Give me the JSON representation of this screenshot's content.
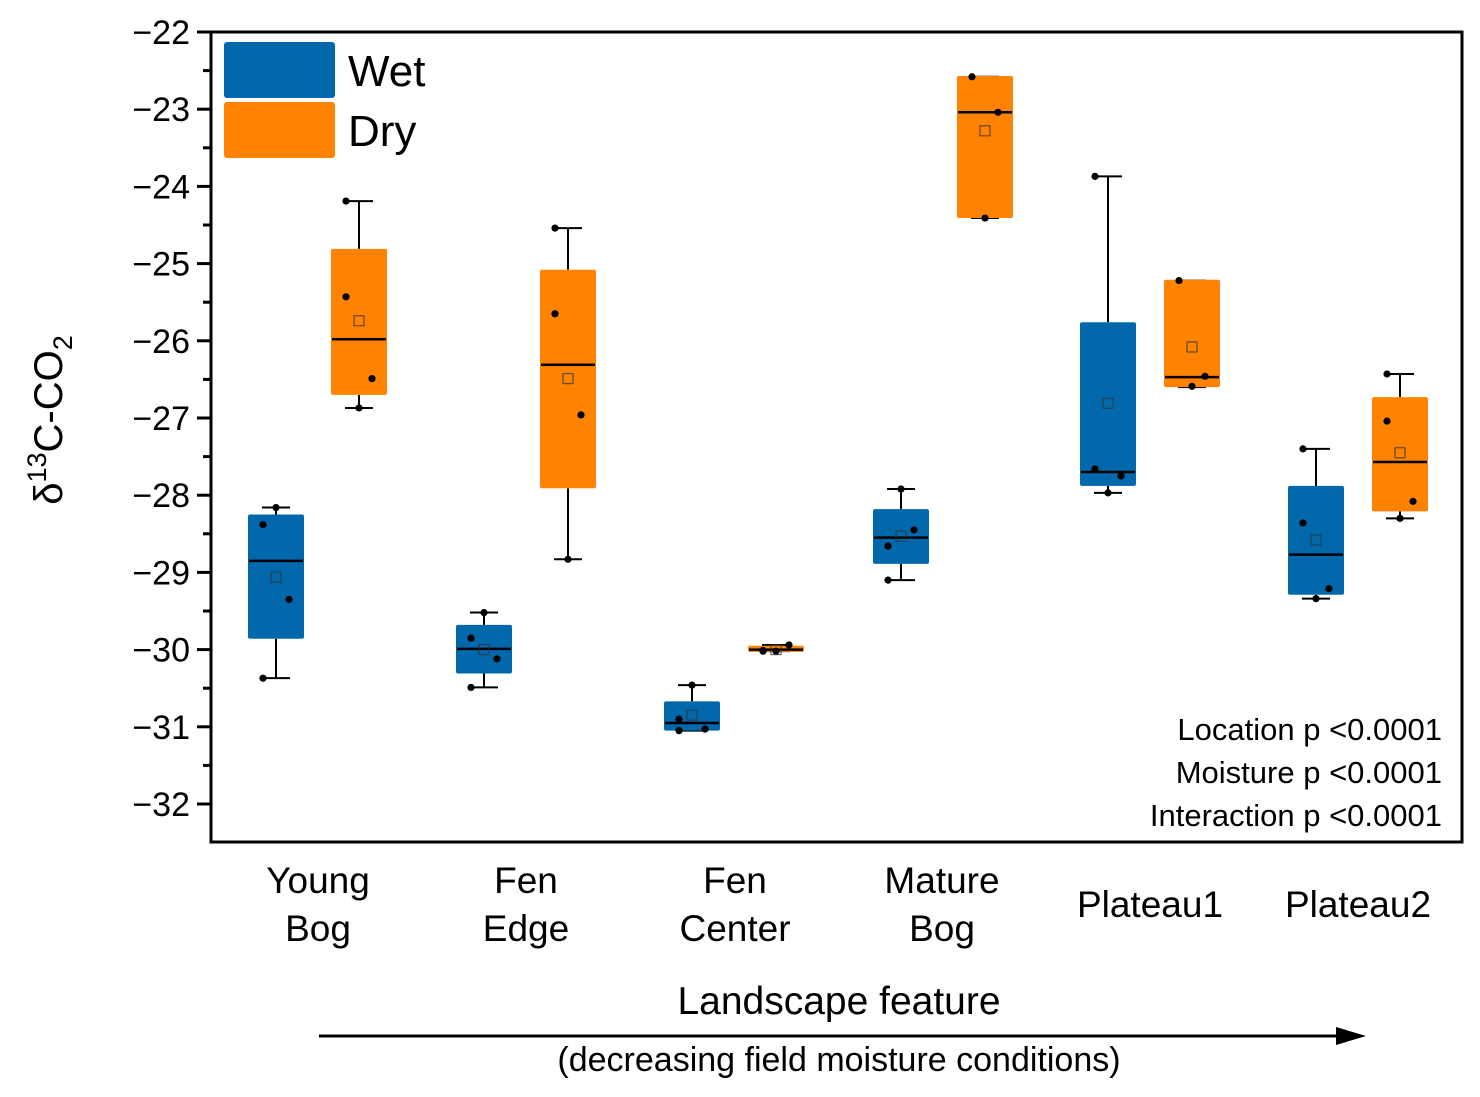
{
  "chart_data": {
    "type": "box",
    "title": "",
    "ylabel": "δ13C-CO2",
    "ylabel_parts": {
      "delta": "δ",
      "sup": "13",
      "main": "C-CO",
      "sub": "2"
    },
    "xlabel": "Landscape feature",
    "xlabel_subtitle": "(decreasing field moisture conditions)",
    "ylim": [
      -32.5,
      -22
    ],
    "yticks": [
      -22,
      -23,
      -24,
      -25,
      -26,
      -27,
      -28,
      -29,
      -30,
      -31,
      -32
    ],
    "ytick_labels": [
      "−22",
      "−23",
      "−24",
      "−25",
      "−26",
      "−27",
      "−28",
      "−29",
      "−30",
      "−31",
      "−32"
    ],
    "grid": false,
    "legend_position": "top-left",
    "categories": [
      {
        "lines": [
          "Young",
          "Bog"
        ]
      },
      {
        "lines": [
          "Fen",
          "Edge"
        ]
      },
      {
        "lines": [
          "Fen",
          "Center"
        ]
      },
      {
        "lines": [
          "Mature",
          "Bog"
        ]
      },
      {
        "lines": [
          "Plateau1"
        ]
      },
      {
        "lines": [
          "Plateau2"
        ]
      }
    ],
    "series": [
      {
        "name": "Wet",
        "color": "#0268ac",
        "boxes": [
          {
            "q1": -29.86,
            "q3": -28.25,
            "median": -28.85,
            "mean": -29.06,
            "whisker_low": -30.37,
            "whisker_high": -28.16,
            "points": [
              -28.38,
              -29.35,
              -28.16,
              -30.37
            ]
          },
          {
            "q1": -30.31,
            "q3": -29.68,
            "median": -29.99,
            "mean": -30.0,
            "whisker_low": -30.49,
            "whisker_high": -29.52,
            "points": [
              -29.85,
              -30.12,
              -29.52,
              -30.49
            ]
          },
          {
            "q1": -31.05,
            "q3": -30.67,
            "median": -30.95,
            "mean": -30.85,
            "whisker_low": -31.05,
            "whisker_high": -30.46,
            "points": [
              -30.9,
              -31.03,
              -30.46,
              -31.05
            ]
          },
          {
            "q1": -28.89,
            "q3": -28.18,
            "median": -28.55,
            "mean": -28.53,
            "whisker_low": -29.1,
            "whisker_high": -27.92,
            "points": [
              -28.66,
              -28.45,
              -27.92,
              -29.1
            ]
          },
          {
            "q1": -27.88,
            "q3": -25.76,
            "median": -27.7,
            "mean": -26.81,
            "whisker_low": -27.97,
            "whisker_high": -23.87,
            "points": [
              -27.66,
              -27.75,
              -27.97,
              -23.87
            ]
          },
          {
            "q1": -29.29,
            "q3": -27.88,
            "median": -28.77,
            "mean": -28.58,
            "whisker_low": -29.34,
            "whisker_high": -27.4,
            "points": [
              -28.36,
              -29.21,
              -29.34,
              -27.4
            ]
          }
        ]
      },
      {
        "name": "Dry",
        "color": "#ff8300",
        "boxes": [
          {
            "q1": -26.7,
            "q3": -24.81,
            "median": -25.98,
            "mean": -25.74,
            "whisker_low": -26.87,
            "whisker_high": -24.19,
            "points": [
              -25.43,
              -26.49,
              -26.87,
              -24.19
            ]
          },
          {
            "q1": -27.91,
            "q3": -25.08,
            "median": -26.31,
            "mean": -26.49,
            "whisker_low": -28.83,
            "whisker_high": -24.54,
            "points": [
              -25.65,
              -26.96,
              -28.83,
              -24.54
            ]
          },
          {
            "q1": -30.03,
            "q3": -29.95,
            "median": -30.0,
            "mean": -30.0,
            "whisker_low": -30.02,
            "whisker_high": -29.94,
            "points": [
              -30.02,
              -29.94,
              -30.02,
              -30.01
            ]
          },
          {
            "q1": -24.41,
            "q3": -22.57,
            "median": -23.04,
            "mean": -23.28,
            "whisker_low": -24.41,
            "whisker_high": -22.58,
            "points": [
              -22.58,
              -23.04,
              -24.41
            ]
          },
          {
            "q1": -26.6,
            "q3": -25.21,
            "median": -26.47,
            "mean": -26.08,
            "whisker_low": -26.6,
            "whisker_high": -25.22,
            "points": [
              -25.22,
              -26.46,
              -26.59
            ]
          },
          {
            "q1": -28.21,
            "q3": -26.73,
            "median": -27.57,
            "mean": -27.45,
            "whisker_low": -28.3,
            "whisker_high": -26.43,
            "points": [
              -27.04,
              -28.08,
              -28.3,
              -26.43
            ]
          }
        ]
      }
    ],
    "annotations": [
      "Location p <0.0001",
      "Moisture p <0.0001",
      "Interaction p <0.0001"
    ]
  }
}
